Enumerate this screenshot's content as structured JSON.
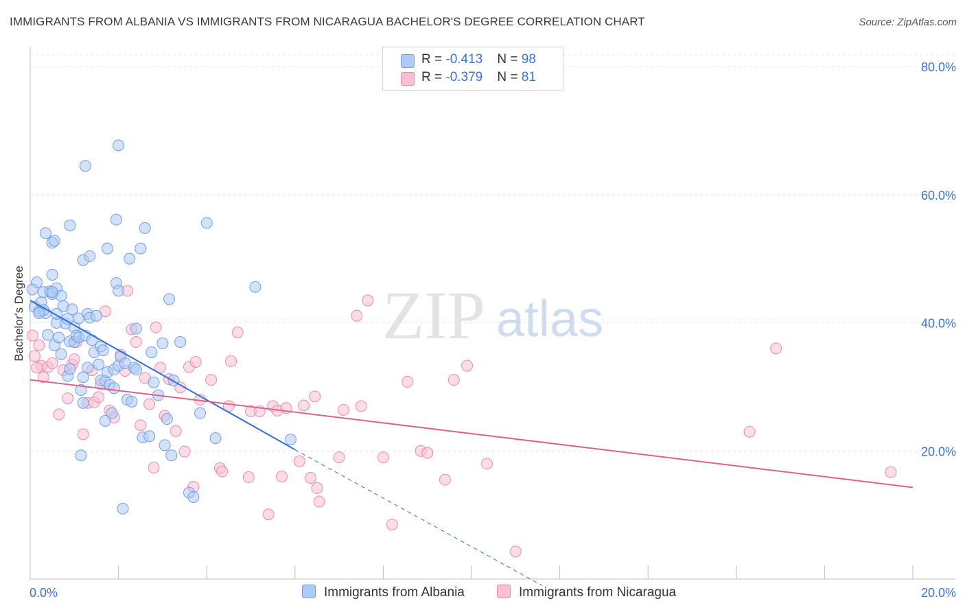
{
  "title": "IMMIGRANTS FROM ALBANIA VS IMMIGRANTS FROM NICARAGUA BACHELOR'S DEGREE CORRELATION CHART",
  "source": "Source: ZipAtlas.com",
  "watermark": {
    "zip": "ZIP",
    "atlas": "atlas"
  },
  "legend": {
    "rows": [
      {
        "r_label": "R = ",
        "r_value": "-0.413",
        "n_label": "N = ",
        "n_value": "98"
      },
      {
        "r_label": "R = ",
        "r_value": "-0.379",
        "n_label": "N = ",
        "n_value": "81"
      }
    ]
  },
  "colors": {
    "albania_fill": "#aecbf5",
    "albania_stroke": "#6f9ee0",
    "albania_line": "#2f6fd6",
    "nicaragua_fill": "#f9c0d3",
    "nicaragua_stroke": "#e98bab",
    "nicaragua_line": "#e0608d",
    "axis_text": "#3b73d4",
    "grid": "#e3e3e3"
  },
  "chart_data": {
    "type": "scatter",
    "title": "IMMIGRANTS FROM ALBANIA VS IMMIGRANTS FROM NICARAGUA BACHELOR'S DEGREE CORRELATION CHART",
    "xlabel": "",
    "ylabel": "Bachelor's Degree",
    "xlim": [
      0,
      20
    ],
    "ylim": [
      0,
      80
    ],
    "x_tick_labels": [
      "0.0%",
      "20.0%"
    ],
    "y_ticks": [
      20,
      40,
      60,
      80
    ],
    "y_tick_labels": [
      "20.0%",
      "40.0%",
      "60.0%",
      "80.0%"
    ],
    "grid": true,
    "legend_position": "top-center",
    "series": [
      {
        "name": "Immigrants from Albania",
        "color": "#aecbf5",
        "r": -0.413,
        "n": 98,
        "trend": {
          "x": [
            0,
            6.0
          ],
          "y": [
            43.5,
            20.2
          ],
          "dashed_extension_to": [
            11.6,
            -1
          ]
        },
        "points": [
          [
            0.1,
            42.5
          ],
          [
            0.15,
            46.3
          ],
          [
            0.2,
            41.8
          ],
          [
            0.25,
            43.2
          ],
          [
            0.3,
            44.8
          ],
          [
            0.35,
            41.5
          ],
          [
            0.4,
            38.1
          ],
          [
            0.45,
            44.9
          ],
          [
            0.5,
            44.5
          ],
          [
            0.5,
            47.5
          ],
          [
            0.55,
            36.5
          ],
          [
            0.6,
            45.4
          ],
          [
            0.6,
            40.0
          ],
          [
            0.65,
            37.7
          ],
          [
            0.7,
            35.1
          ],
          [
            0.7,
            44.2
          ],
          [
            0.75,
            42.6
          ],
          [
            0.8,
            39.9
          ],
          [
            0.85,
            40.6
          ],
          [
            0.85,
            31.7
          ],
          [
            0.9,
            37.1
          ],
          [
            0.9,
            32.8
          ],
          [
            0.95,
            42.1
          ],
          [
            1.0,
            37.0
          ],
          [
            1.0,
            39.3
          ],
          [
            1.05,
            38.0
          ],
          [
            1.1,
            37.7
          ],
          [
            1.1,
            40.7
          ],
          [
            1.15,
            29.5
          ],
          [
            1.2,
            31.5
          ],
          [
            1.2,
            27.5
          ],
          [
            1.25,
            38.0
          ],
          [
            1.3,
            41.4
          ],
          [
            1.3,
            33.0
          ],
          [
            1.35,
            40.8
          ],
          [
            1.4,
            37.3
          ],
          [
            1.45,
            35.4
          ],
          [
            1.5,
            41.1
          ],
          [
            1.55,
            33.5
          ],
          [
            1.6,
            36.3
          ],
          [
            1.6,
            31.0
          ],
          [
            1.65,
            35.7
          ],
          [
            1.7,
            30.9
          ],
          [
            1.7,
            24.7
          ],
          [
            1.75,
            32.3
          ],
          [
            1.8,
            30.3
          ],
          [
            1.85,
            25.9
          ],
          [
            1.9,
            29.8
          ],
          [
            1.9,
            32.7
          ],
          [
            1.95,
            46.2
          ],
          [
            2.0,
            45.0
          ],
          [
            2.0,
            33.3
          ],
          [
            2.05,
            34.7
          ],
          [
            2.1,
            11.0
          ],
          [
            2.15,
            33.7
          ],
          [
            2.2,
            28.0
          ],
          [
            2.25,
            50.0
          ],
          [
            2.3,
            27.7
          ],
          [
            2.35,
            33.0
          ],
          [
            2.4,
            32.7
          ],
          [
            2.4,
            39.1
          ],
          [
            2.5,
            51.6
          ],
          [
            2.55,
            22.1
          ],
          [
            2.6,
            54.8
          ],
          [
            2.7,
            22.3
          ],
          [
            2.75,
            35.4
          ],
          [
            2.8,
            30.7
          ],
          [
            2.9,
            28.7
          ],
          [
            3.0,
            36.8
          ],
          [
            3.05,
            20.9
          ],
          [
            3.1,
            25.0
          ],
          [
            3.15,
            43.7
          ],
          [
            3.2,
            19.3
          ],
          [
            3.25,
            31.0
          ],
          [
            3.4,
            37.0
          ],
          [
            3.6,
            13.5
          ],
          [
            3.7,
            12.8
          ],
          [
            3.85,
            25.9
          ],
          [
            4.0,
            55.6
          ],
          [
            4.2,
            22.0
          ],
          [
            5.1,
            45.6
          ],
          [
            5.9,
            21.8
          ],
          [
            0.35,
            54.0
          ],
          [
            0.5,
            52.5
          ],
          [
            0.55,
            52.8
          ],
          [
            0.9,
            55.2
          ],
          [
            1.2,
            49.8
          ],
          [
            1.35,
            50.4
          ],
          [
            1.75,
            51.6
          ],
          [
            1.95,
            56.1
          ],
          [
            1.25,
            64.5
          ],
          [
            2.0,
            67.7
          ],
          [
            0.5,
            44.8
          ],
          [
            0.3,
            42.0
          ],
          [
            1.15,
            19.3
          ],
          [
            0.2,
            41.5
          ],
          [
            0.6,
            41.4
          ],
          [
            0.05,
            45.2
          ]
        ]
      },
      {
        "name": "Immigrants from Nicaragua",
        "color": "#f9c0d3",
        "r": -0.379,
        "n": 81,
        "trend": {
          "x": [
            0,
            20
          ],
          "y": [
            31.1,
            14.3
          ]
        },
        "points": [
          [
            0.05,
            38.0
          ],
          [
            0.1,
            34.8
          ],
          [
            0.25,
            33.3
          ],
          [
            0.3,
            31.5
          ],
          [
            0.4,
            33.1
          ],
          [
            0.5,
            33.7
          ],
          [
            0.65,
            25.7
          ],
          [
            0.75,
            32.6
          ],
          [
            0.85,
            28.2
          ],
          [
            0.95,
            33.5
          ],
          [
            1.0,
            34.3
          ],
          [
            1.05,
            37.0
          ],
          [
            1.2,
            22.6
          ],
          [
            1.3,
            27.5
          ],
          [
            1.4,
            32.6
          ],
          [
            1.45,
            27.6
          ],
          [
            1.55,
            28.4
          ],
          [
            1.6,
            30.4
          ],
          [
            1.7,
            41.8
          ],
          [
            1.8,
            26.3
          ],
          [
            1.9,
            25.2
          ],
          [
            2.05,
            35.0
          ],
          [
            2.15,
            32.5
          ],
          [
            2.2,
            45.0
          ],
          [
            2.3,
            39.0
          ],
          [
            2.4,
            37.0
          ],
          [
            2.5,
            24.0
          ],
          [
            2.6,
            31.4
          ],
          [
            2.7,
            27.3
          ],
          [
            2.8,
            17.4
          ],
          [
            2.85,
            39.3
          ],
          [
            2.95,
            33.0
          ],
          [
            3.05,
            25.5
          ],
          [
            3.15,
            31.2
          ],
          [
            3.3,
            23.1
          ],
          [
            3.4,
            29.9
          ],
          [
            3.5,
            19.9
          ],
          [
            3.6,
            33.1
          ],
          [
            3.7,
            14.4
          ],
          [
            3.75,
            33.9
          ],
          [
            3.85,
            28.0
          ],
          [
            4.1,
            31.1
          ],
          [
            4.3,
            17.3
          ],
          [
            4.35,
            16.8
          ],
          [
            4.5,
            27.0
          ],
          [
            4.55,
            34.0
          ],
          [
            4.7,
            38.5
          ],
          [
            4.95,
            15.9
          ],
          [
            5.0,
            26.2
          ],
          [
            5.2,
            26.2
          ],
          [
            5.4,
            10.1
          ],
          [
            5.5,
            27.0
          ],
          [
            5.6,
            26.3
          ],
          [
            5.7,
            16.0
          ],
          [
            5.8,
            26.7
          ],
          [
            6.1,
            18.4
          ],
          [
            6.2,
            27.1
          ],
          [
            6.35,
            15.8
          ],
          [
            6.45,
            28.5
          ],
          [
            6.5,
            14.2
          ],
          [
            6.55,
            12.1
          ],
          [
            7.0,
            19.0
          ],
          [
            7.1,
            26.4
          ],
          [
            7.4,
            41.1
          ],
          [
            7.5,
            27.0
          ],
          [
            7.65,
            43.5
          ],
          [
            8.0,
            19.0
          ],
          [
            8.2,
            8.5
          ],
          [
            8.55,
            30.8
          ],
          [
            8.85,
            20.0
          ],
          [
            9.0,
            19.7
          ],
          [
            9.4,
            15.5
          ],
          [
            9.6,
            31.1
          ],
          [
            9.9,
            33.3
          ],
          [
            10.35,
            18.0
          ],
          [
            11.0,
            4.3
          ],
          [
            16.3,
            23.0
          ],
          [
            16.9,
            36.0
          ],
          [
            19.5,
            16.7
          ],
          [
            0.2,
            36.5
          ],
          [
            0.15,
            33.0
          ]
        ]
      }
    ]
  }
}
